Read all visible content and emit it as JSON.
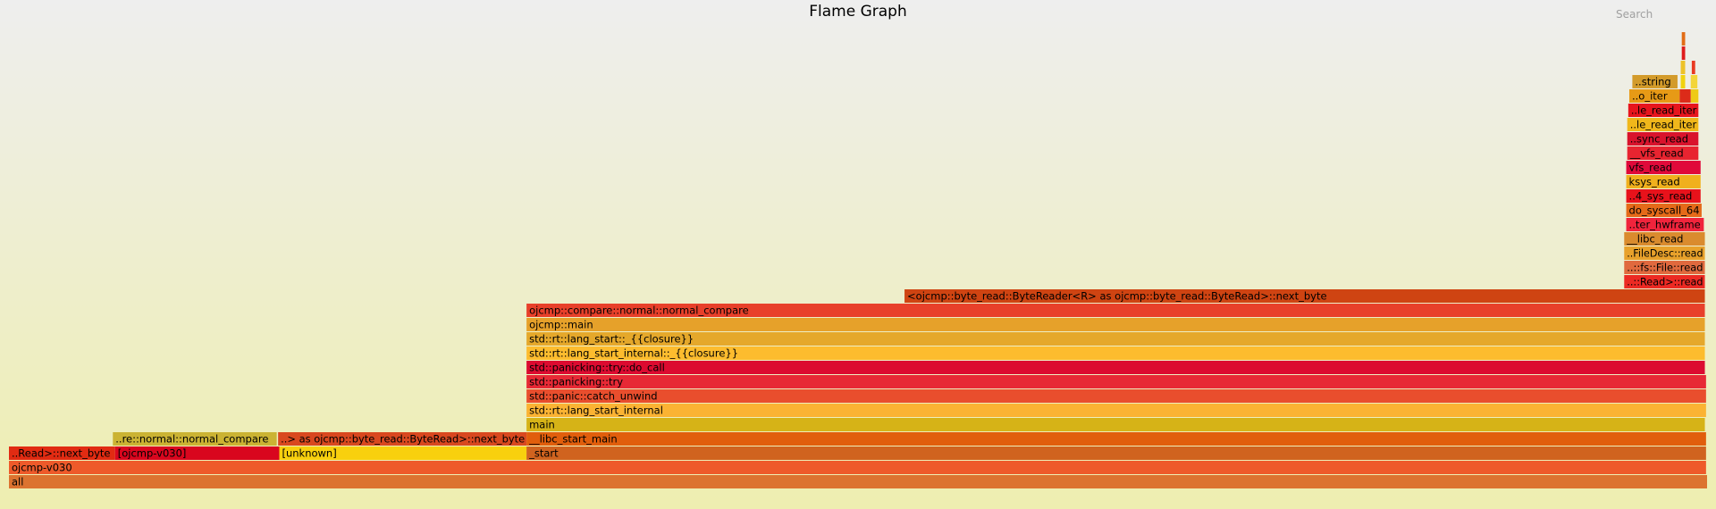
{
  "header": {
    "title": "Flame Graph",
    "search_label": "Search"
  },
  "chart_data": {
    "type": "flamegraph",
    "title": "Flame Graph",
    "frames": [
      {
        "id": "all",
        "label": "all",
        "depth": 0,
        "start": 0.0,
        "end": 1.0,
        "color": "#dc7330"
      },
      {
        "id": "ojcmp-v030-a",
        "label": "ojcmp-v030",
        "depth": 1,
        "start": 0.0,
        "end": 0.9994,
        "color": "#ee5a2a"
      },
      {
        "id": "next-byte-left",
        "label": "..Read>::next_byte",
        "depth": 2,
        "start": 0.0,
        "end": 0.0625,
        "color": "#e12b12"
      },
      {
        "id": "ojcmp-v030-b",
        "label": "[ojcmp-v030]",
        "depth": 2,
        "start": 0.0625,
        "end": 0.1594,
        "color": "#d9061e"
      },
      {
        "id": "unknown",
        "label": "[unknown]",
        "depth": 2,
        "start": 0.1592,
        "end": 0.3048,
        "color": "#f8d00e"
      },
      {
        "id": "start",
        "label": "_start",
        "depth": 2,
        "start": 0.3048,
        "end": 0.9994,
        "color": "#d0631f"
      },
      {
        "id": "normal-compare-left",
        "label": "..re::normal::normal_compare",
        "depth": 3,
        "start": 0.0612,
        "end": 0.1577,
        "color": "#cbb333"
      },
      {
        "id": "next-byte-mid",
        "label": "..> as ojcmp::byte_read::ByteRead>::next_byte",
        "depth": 3,
        "start": 0.1585,
        "end": 0.3048,
        "color": "#d9481f"
      },
      {
        "id": "libc-start-main",
        "label": "__libc_start_main",
        "depth": 3,
        "start": 0.3048,
        "end": 0.9994,
        "color": "#e15e0c"
      },
      {
        "id": "main",
        "label": "main",
        "depth": 4,
        "start": 0.3048,
        "end": 0.9987,
        "color": "#d6b317"
      },
      {
        "id": "lang-start-internal",
        "label": "std::rt::lang_start_internal",
        "depth": 5,
        "start": 0.3048,
        "end": 0.9994,
        "color": "#fbb333"
      },
      {
        "id": "catch-unwind",
        "label": "std::panic::catch_unwind",
        "depth": 6,
        "start": 0.3048,
        "end": 0.9994,
        "color": "#e94e2d"
      },
      {
        "id": "panicking-try",
        "label": "std::panicking::try",
        "depth": 7,
        "start": 0.3048,
        "end": 0.9994,
        "color": "#e72935"
      },
      {
        "id": "do-call",
        "label": "std::panicking::try::do_call",
        "depth": 8,
        "start": 0.3048,
        "end": 0.9987,
        "color": "#dc0b30"
      },
      {
        "id": "lang-start-internal-closure",
        "label": "std::rt::lang_start_internal::_{{closure}}",
        "depth": 9,
        "start": 0.3048,
        "end": 0.9987,
        "color": "#fdbc2e"
      },
      {
        "id": "lang-start-closure",
        "label": "std::rt::lang_start::_{{closure}}",
        "depth": 10,
        "start": 0.3048,
        "end": 0.9987,
        "color": "#e5a82b"
      },
      {
        "id": "ojcmp-main",
        "label": "ojcmp::main",
        "depth": 11,
        "start": 0.3048,
        "end": 0.9987,
        "color": "#e6a12a"
      },
      {
        "id": "normal-compare",
        "label": "ojcmp::compare::normal::normal_compare",
        "depth": 12,
        "start": 0.3048,
        "end": 0.9987,
        "color": "#e8402a"
      },
      {
        "id": "next-byte-right",
        "label": "<ojcmp::byte_read::ByteReader<R> as ojcmp::byte_read::ByteRead>::next_byte",
        "depth": 13,
        "start": 0.5274,
        "end": 0.9987,
        "color": "#cf4412"
      },
      {
        "id": "io-read",
        "label": "..::Read>::read",
        "depth": 14,
        "start": 0.9512,
        "end": 0.9987,
        "color": "#ec2a23"
      },
      {
        "id": "fs-file-read",
        "label": "..::fs::File::read",
        "depth": 15,
        "start": 0.9512,
        "end": 0.9987,
        "color": "#e0693e"
      },
      {
        "id": "filedesc-read",
        "label": "..FileDesc::read",
        "depth": 16,
        "start": 0.9512,
        "end": 0.9987,
        "color": "#e8a12b"
      },
      {
        "id": "libc-read",
        "label": "__libc_read",
        "depth": 17,
        "start": 0.9512,
        "end": 0.9987,
        "color": "#da8b2e"
      },
      {
        "id": "entry-hwframe",
        "label": "..ter_hwframe",
        "depth": 18,
        "start": 0.9524,
        "end": 0.9981,
        "color": "#f0243c"
      },
      {
        "id": "do-syscall-64",
        "label": "do_syscall_64",
        "depth": 19,
        "start": 0.9524,
        "end": 0.9968,
        "color": "#e56a19"
      },
      {
        "id": "x64-sys-read",
        "label": "..4_sys_read",
        "depth": 20,
        "start": 0.9524,
        "end": 0.9962,
        "color": "#e8121b"
      },
      {
        "id": "ksys-read",
        "label": "ksys_read",
        "depth": 21,
        "start": 0.9524,
        "end": 0.9962,
        "color": "#f0b01d"
      },
      {
        "id": "vfs-read",
        "label": "vfs_read",
        "depth": 22,
        "start": 0.9524,
        "end": 0.9962,
        "color": "#e0093a"
      },
      {
        "id": "vfs-read-inner",
        "label": "__vfs_read",
        "depth": 23,
        "start": 0.953,
        "end": 0.9949,
        "color": "#e82430"
      },
      {
        "id": "sync-read",
        "label": "..sync_read",
        "depth": 24,
        "start": 0.953,
        "end": 0.9949,
        "color": "#d9132c"
      },
      {
        "id": "file-read-iter-a",
        "label": "..le_read_iter",
        "depth": 25,
        "start": 0.953,
        "end": 0.9949,
        "color": "#f0b71b"
      },
      {
        "id": "file-read-iter-b",
        "label": "..le_read_iter",
        "depth": 26,
        "start": 0.9536,
        "end": 0.9949,
        "color": "#e7151d"
      },
      {
        "id": "to-iter",
        "label": "..o_iter",
        "depth": 27,
        "start": 0.9542,
        "end": 0.9839,
        "color": "#e79a16"
      },
      {
        "id": "to-iter-red",
        "label": "",
        "depth": 27,
        "start": 0.9839,
        "end": 0.9904,
        "color": "#dc2b19"
      },
      {
        "id": "to-iter-yellow",
        "label": "",
        "depth": 27,
        "start": 0.9904,
        "end": 0.9949,
        "color": "#eeca17"
      },
      {
        "id": "string",
        "label": "..string",
        "depth": 28,
        "start": 0.956,
        "end": 0.9826,
        "color": "#d39b2a"
      },
      {
        "id": "string-yellow-a",
        "label": "",
        "depth": 28,
        "start": 0.9845,
        "end": 0.9871,
        "color": "#f1d20f"
      },
      {
        "id": "string-yellow-b",
        "label": "",
        "depth": 28,
        "start": 0.9904,
        "end": 0.9943,
        "color": "#f3d53a"
      },
      {
        "id": "top-a",
        "label": "",
        "depth": 29,
        "start": 0.9845,
        "end": 0.9871,
        "color": "#edc228"
      },
      {
        "id": "top-b",
        "label": "",
        "depth": 29,
        "start": 0.991,
        "end": 0.993,
        "color": "#e93a22"
      },
      {
        "id": "top-c",
        "label": "",
        "depth": 30,
        "start": 0.9851,
        "end": 0.9871,
        "color": "#df1c1c"
      },
      {
        "id": "top-d",
        "label": "",
        "depth": 31,
        "start": 0.9851,
        "end": 0.9871,
        "color": "#e26c16"
      }
    ]
  }
}
